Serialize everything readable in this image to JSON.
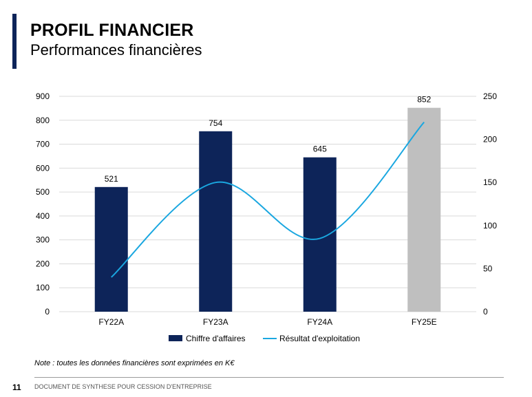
{
  "header": {
    "title": "PROFIL FINANCIER",
    "subtitle": "Performances financières"
  },
  "chart_data": {
    "type": "bar",
    "categories": [
      "FY22A",
      "FY23A",
      "FY24A",
      "FY25E"
    ],
    "series": [
      {
        "name": "Chiffre d'affaires",
        "type": "bar",
        "axis": "left",
        "values": [
          521,
          754,
          645,
          852
        ],
        "colors": [
          "#0d2459",
          "#0d2459",
          "#0d2459",
          "#bfbfbf"
        ],
        "data_labels": [
          "521",
          "754",
          "645",
          "852"
        ]
      },
      {
        "name": "Résultat d'exploitation",
        "type": "line",
        "axis": "right",
        "smooth": true,
        "values": [
          40,
          150,
          85,
          220
        ],
        "color": "#1aa7e0"
      }
    ],
    "y_left": {
      "range": [
        0,
        900
      ],
      "ticks": [
        "0",
        "100",
        "200",
        "300",
        "400",
        "500",
        "600",
        "700",
        "800",
        "900"
      ]
    },
    "y_right": {
      "range": [
        0,
        250
      ],
      "ticks": [
        "0",
        "50",
        "100",
        "150",
        "200",
        "250"
      ]
    },
    "grid": true,
    "legend": "bottom"
  },
  "note": "Note : toutes les données financières sont exprimées en K€",
  "footer": {
    "page_number": "11",
    "text": "DOCUMENT DE SYNTHESE POUR CESSION D'ENTREPRISE"
  }
}
